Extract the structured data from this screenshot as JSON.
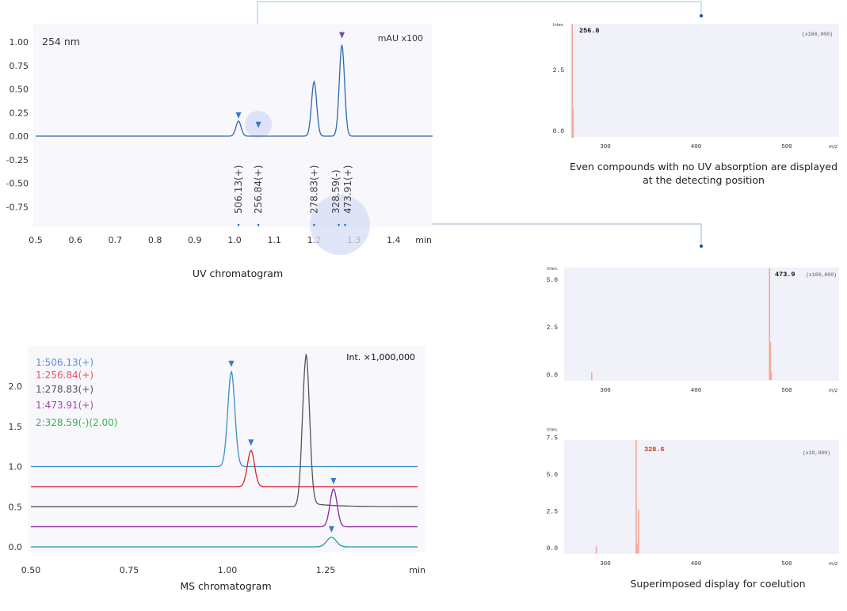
{
  "colors": {
    "panel_bg": "#f7f7fc",
    "spectrum_bg": "#f0f1f9",
    "uv_line": "#2a6ab0",
    "marker_blue": "#3a78c8",
    "marker_purple": "#6a4fa0",
    "connector": "#8fd0e0",
    "connector_dot": "#1a4ea0",
    "spectrum_bar": "#f3a898",
    "highlight_circle": "#d6dcf6"
  },
  "chart_data": [
    {
      "id": "uv",
      "type": "line",
      "title": "254 nm",
      "unit_label": "mAU x100",
      "xlabel": "min",
      "caption": "UV chromatogram",
      "xlim": [
        0.5,
        1.5
      ],
      "ylim": [
        -0.95,
        1.15
      ],
      "xticks": [
        "0.5",
        "0.6",
        "0.7",
        "0.8",
        "0.9",
        "1.0",
        "1.1",
        "1.2",
        "1.3",
        "1.4"
      ],
      "yticks": [
        "1.00",
        "0.75",
        "0.50",
        "0.25",
        "0.00",
        "-0.25",
        "-0.50",
        "-0.75"
      ],
      "peaks": [
        {
          "rt": 1.01,
          "height": 0.16
        },
        {
          "rt": 1.2,
          "height": 0.58
        },
        {
          "rt": 1.27,
          "height": 0.97
        }
      ],
      "markers": [
        {
          "rt": 1.01,
          "y": 0.22,
          "color": "#3a78c8"
        },
        {
          "rt": 1.06,
          "y": 0.12,
          "color": "#3a78c8"
        },
        {
          "rt": 1.27,
          "y": 1.07,
          "color": "#6a4fa0"
        }
      ],
      "mass_labels": [
        {
          "rt": 1.01,
          "label": "506.13(+)"
        },
        {
          "rt": 1.06,
          "label": "256.84(+)"
        },
        {
          "rt": 1.2,
          "label": "278.83(+)"
        },
        {
          "rt": 1.262,
          "label": "328.59(-)"
        },
        {
          "rt": 1.278,
          "label": "473.91(+)"
        }
      ]
    },
    {
      "id": "ms",
      "type": "line",
      "unit_label": "Int. ×1,000,000",
      "xlabel": "min",
      "caption": "MS chromatogram",
      "xlim": [
        0.5,
        1.5
      ],
      "ylim": [
        -0.1,
        2.45
      ],
      "xticks": [
        "0.50",
        "0.75",
        "1.00",
        "1.25"
      ],
      "yticks": [
        "2.0",
        "1.5",
        "1.0",
        "0.5",
        "0.0"
      ],
      "series": [
        {
          "name": "1:506.13(+)",
          "color": "#3a8fc8",
          "label_color": "#5a8fd8",
          "baseline": 1.0,
          "rt": 1.01,
          "height": 1.18,
          "marker": true
        },
        {
          "name": "1:256.84(+)",
          "color": "#e0202a",
          "label_color": "#f05060",
          "baseline": 0.75,
          "rt": 1.06,
          "height": 0.45,
          "marker": true
        },
        {
          "name": "1:278.83(+)",
          "color": "#555555",
          "label_color": "#555555",
          "baseline": 0.5,
          "rt": 1.2,
          "height": 1.85,
          "marker": false
        },
        {
          "name": "1:473.91(+)",
          "color": "#8a2a9a",
          "label_color": "#a04ab0",
          "baseline": 0.25,
          "rt": 1.27,
          "height": 0.47,
          "marker": true
        },
        {
          "name": "2:328.59(-)(2.00)",
          "color": "#1a9aa8",
          "label_color": "#3ab050",
          "baseline": 0.0,
          "rt": 1.265,
          "height": 0.12,
          "marker": true
        }
      ]
    },
    {
      "id": "spec1",
      "type": "bar",
      "y_label": "Inten.",
      "xlabel": "m/z",
      "scale_label": "(x100,000)",
      "peak_label": "256.8",
      "peak_label_color": "#111111",
      "xlim": [
        262,
        560
      ],
      "ylim": [
        -0.3,
        4.6
      ],
      "xticks": [
        "300",
        "400",
        "500"
      ],
      "yticks": [
        "2.5",
        "0.0"
      ],
      "bars": [
        {
          "mz": 263.5,
          "intensity": 4.6
        },
        {
          "mz": 264.5,
          "intensity": 0.9
        }
      ],
      "caption": "Even compounds with no UV absorption are displayed at the detecting position"
    },
    {
      "id": "spec2",
      "type": "bar",
      "y_label": "Inten.",
      "xlabel": "m/z",
      "scale_label": "(x100,000)",
      "peak_label": "473.9",
      "peak_label_color": "#111111",
      "xlim": [
        255,
        560
      ],
      "ylim": [
        -0.3,
        5.6
      ],
      "xticks": [
        "300",
        "400",
        "500"
      ],
      "yticks": [
        "5.0",
        "2.5",
        "0.0"
      ],
      "bars": [
        {
          "mz": 285,
          "intensity": 0.1
        },
        {
          "mz": 481,
          "intensity": 5.6
        },
        {
          "mz": 482,
          "intensity": 1.7
        },
        {
          "mz": 483,
          "intensity": 0.1
        }
      ]
    },
    {
      "id": "spec3",
      "type": "bar",
      "y_label": "Inten.",
      "xlabel": "m/z",
      "scale_label": "(x10,000)",
      "peak_label": "328.6",
      "peak_label_color": "#d04020",
      "xlim": [
        255,
        560
      ],
      "ylim": [
        -0.4,
        7.5
      ],
      "xticks": [
        "300",
        "400",
        "500"
      ],
      "yticks": [
        "7.5",
        "5.0",
        "2.5",
        "0.0"
      ],
      "bars": [
        {
          "mz": 290,
          "intensity": 0.1
        },
        {
          "mz": 334,
          "intensity": 7.3
        },
        {
          "mz": 335,
          "intensity": 0.3
        },
        {
          "mz": 336.5,
          "intensity": 2.6
        }
      ],
      "caption": "Superimposed display for coelution"
    }
  ]
}
